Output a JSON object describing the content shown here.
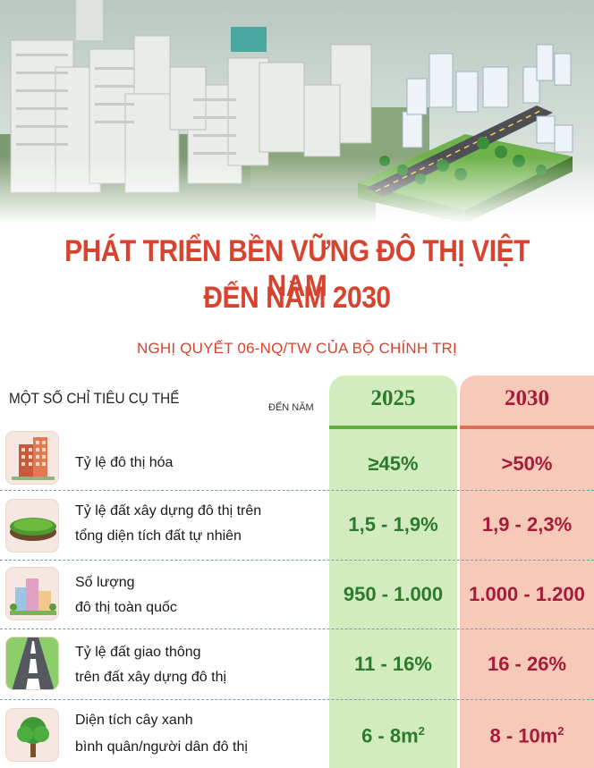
{
  "header": {
    "title_line1": "PHÁT TRIỂN BỀN VỮNG ĐÔ THỊ VIỆT NAM",
    "title_line2": "ĐẾN NĂM 2030",
    "subtitle": "NGHỊ QUYẾT 06-NQ/TW CỦA BỘ CHÍNH TRỊ"
  },
  "table": {
    "section_label": "MỘT SỐ CHỈ TIÊU CỤ THỂ",
    "year_prefix": "ĐẾN NĂM",
    "year_a": "2025",
    "year_b": "2030",
    "rows": [
      {
        "icon": "apartment-building-icon",
        "label1": "Tỷ lệ đô thị hóa",
        "label2": "",
        "v2025": "≥45%",
        "v2030": ">50%"
      },
      {
        "icon": "land-patch-icon",
        "label1": "Tỷ lệ đất xây dựng đô thị trên",
        "label2": "tổng diện tích đất tự nhiên",
        "v2025": "1,5 - 1,9%",
        "v2030": "1,9 - 2,3%"
      },
      {
        "icon": "city-cluster-icon",
        "label1": "Số lượng",
        "label2": "đô thị toàn quốc",
        "v2025": "950 - 1.000",
        "v2030": "1.000 - 1.200"
      },
      {
        "icon": "road-icon",
        "label1": "Tỷ lệ đất giao thông",
        "label2": "trên đất xây dựng đô thị",
        "v2025": "11 - 16%",
        "v2030": "16 - 26%"
      },
      {
        "icon": "tree-icon",
        "label1": "Diện tích cây xanh",
        "label2": "bình quân/người dân đô thị",
        "v2025": "6 - 8m",
        "v2030": "8 - 10m",
        "unit_sup": "2"
      }
    ]
  },
  "colors": {
    "title": "#d8432f",
    "green": "#2c7a2e",
    "red": "#a71b3a"
  }
}
